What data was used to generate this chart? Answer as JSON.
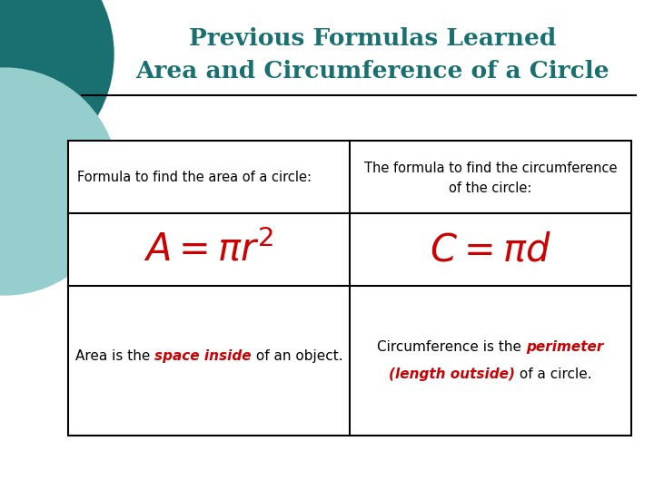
{
  "title_line1": "Previous Formulas Learned",
  "title_line2": "Area and Circumference of a Circle",
  "title_color": "#1a7070",
  "bg_color": "#ffffff",
  "teal_dark": "#1a7070",
  "teal_light": "#96cece",
  "red_color": "#cc0000",
  "black_color": "#000000",
  "formula_color": "#cc0000",
  "cell1_header": "Formula to find the area of a circle:",
  "cell2_header_l1": "The formula to find the circumference",
  "cell2_header_l2": "of the circle:",
  "desc_left_p1": "Area is the ",
  "desc_left_red": "space inside",
  "desc_left_p2": " of an object.",
  "desc_right_p1": "Circumference is the ",
  "desc_right_red1": "perimeter",
  "desc_right_red2": "(length outside)",
  "desc_right_p2": " of a circle."
}
